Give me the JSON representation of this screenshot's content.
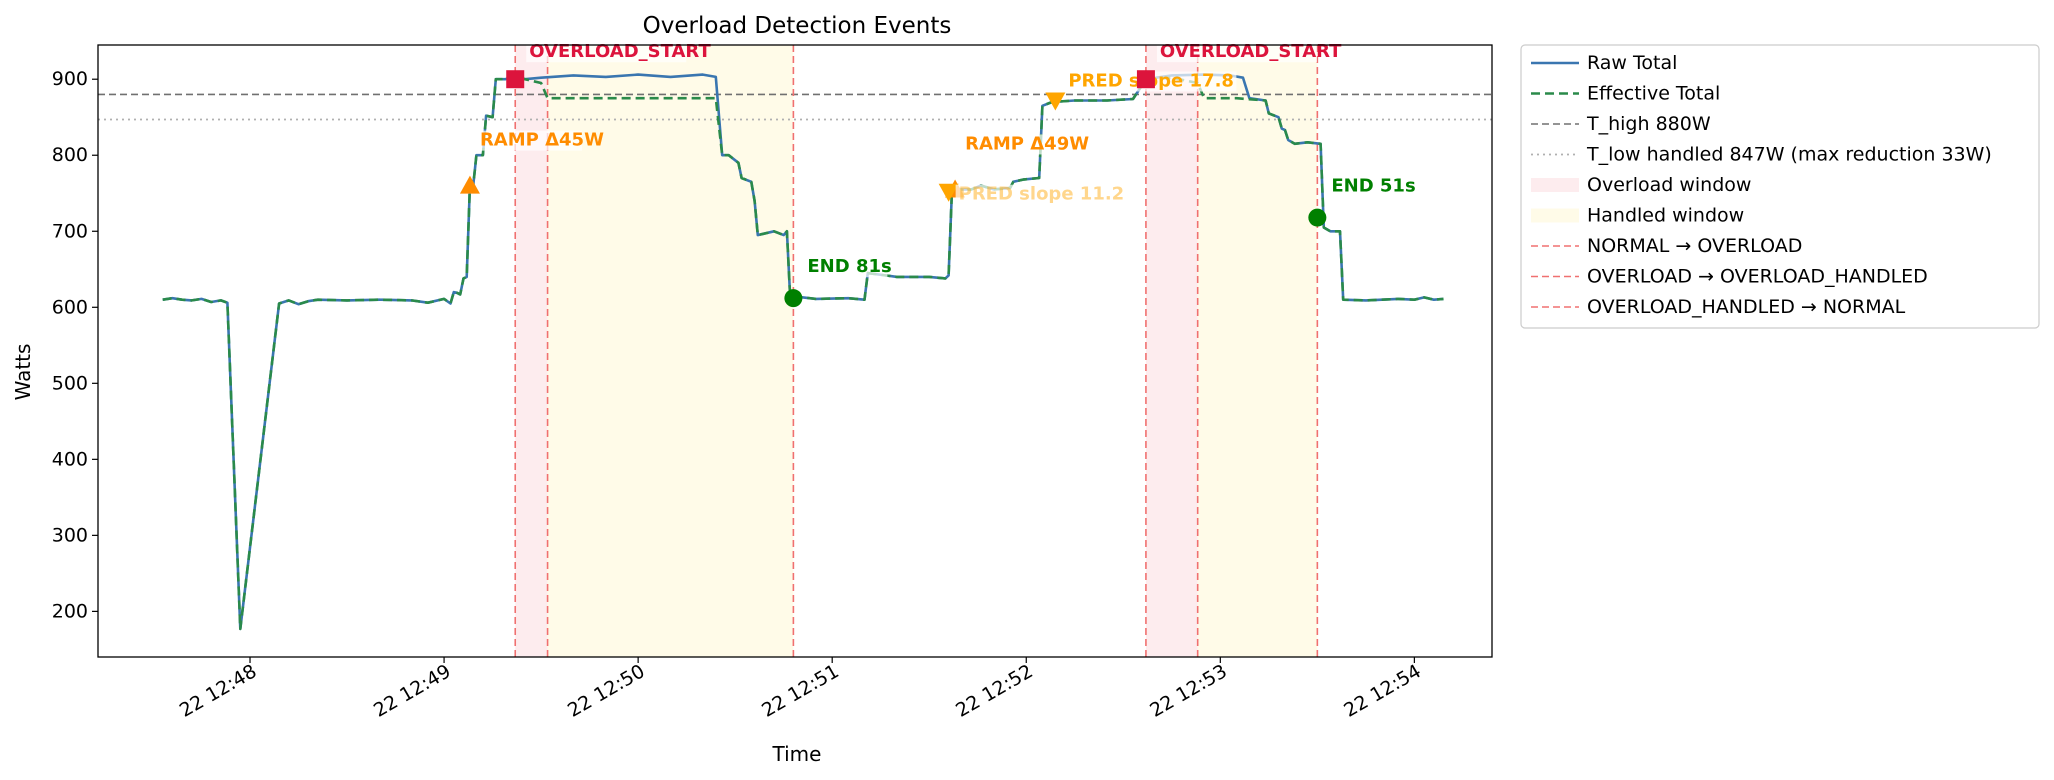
{
  "chart_data": {
    "type": "line",
    "title": "Overload Detection Events",
    "xlabel": "Time",
    "ylabel": "Watts",
    "xlim": [
      "22 12:47:13",
      "22 12:54:24"
    ],
    "ylim": [
      140,
      945
    ],
    "grid": false,
    "legend_position": "outside-right",
    "x_ticks": [
      {
        "t": "22 12:48:00",
        "label": "22 12:48"
      },
      {
        "t": "22 12:49:00",
        "label": "22 12:49"
      },
      {
        "t": "22 12:50:00",
        "label": "22 12:50"
      },
      {
        "t": "22 12:51:00",
        "label": "22 12:51"
      },
      {
        "t": "22 12:52:00",
        "label": "22 12:52"
      },
      {
        "t": "22 12:53:00",
        "label": "22 12:53"
      },
      {
        "t": "22 12:54:00",
        "label": "22 12:54"
      }
    ],
    "y_ticks": [
      200,
      300,
      400,
      500,
      600,
      700,
      800,
      900
    ],
    "colors": {
      "raw": "#3a76b0",
      "effective": "#2a8a4a",
      "t_high": "#707070",
      "t_low": "#b0b0b0",
      "transition": "#f07070",
      "overload_window": "#fdecee",
      "handled_window": "#fffbe8",
      "overload_marker": "#dc143c",
      "ramp": "#ff8c00",
      "pred": "#ffa500",
      "end": "#008000"
    },
    "thresholds": {
      "t_high": 880,
      "t_low": 847
    },
    "series": [
      {
        "name": "Raw Total",
        "points": [
          [
            "22 12:47:33",
            610
          ],
          [
            "22 12:47:36",
            612
          ],
          [
            "22 12:47:39",
            610
          ],
          [
            "22 12:47:42",
            609
          ],
          [
            "22 12:47:45",
            611
          ],
          [
            "22 12:47:48",
            607
          ],
          [
            "22 12:47:51",
            609
          ],
          [
            "22 12:47:53",
            606
          ],
          [
            "22 12:47:57",
            177
          ],
          [
            "22 12:48:09",
            605
          ],
          [
            "22 12:48:12",
            609
          ],
          [
            "22 12:48:15",
            604
          ],
          [
            "22 12:48:18",
            608
          ],
          [
            "22 12:48:21",
            610
          ],
          [
            "22 12:48:30",
            609
          ],
          [
            "22 12:48:40",
            610
          ],
          [
            "22 12:48:50",
            609
          ],
          [
            "22 12:48:55",
            606
          ],
          [
            "22 12:49:00",
            611
          ],
          [
            "22 12:49:02",
            605
          ],
          [
            "22 12:49:03",
            620
          ],
          [
            "22 12:49:04",
            619
          ],
          [
            "22 12:49:05",
            617
          ],
          [
            "22 12:49:06",
            638
          ],
          [
            "22 12:49:07",
            640
          ],
          [
            "22 12:49:08",
            760
          ],
          [
            "22 12:49:09",
            760
          ],
          [
            "22 12:49:10",
            800
          ],
          [
            "22 12:49:12",
            800
          ],
          [
            "22 12:49:13",
            852
          ],
          [
            "22 12:49:15",
            850
          ],
          [
            "22 12:49:16",
            900
          ],
          [
            "22 12:49:19",
            900
          ],
          [
            "22 12:49:22",
            905
          ],
          [
            "22 12:49:25",
            900
          ],
          [
            "22 12:49:30",
            902
          ],
          [
            "22 12:49:40",
            905
          ],
          [
            "22 12:49:50",
            903
          ],
          [
            "22 12:50:00",
            906
          ],
          [
            "22 12:50:10",
            903
          ],
          [
            "22 12:50:20",
            906
          ],
          [
            "22 12:50:24",
            903
          ],
          [
            "22 12:50:26",
            800
          ],
          [
            "22 12:50:28",
            800
          ],
          [
            "22 12:50:31",
            790
          ],
          [
            "22 12:50:32",
            770
          ],
          [
            "22 12:50:35",
            765
          ],
          [
            "22 12:50:36",
            740
          ],
          [
            "22 12:50:37",
            695
          ],
          [
            "22 12:50:42",
            700
          ],
          [
            "22 12:50:45",
            695
          ],
          [
            "22 12:50:46",
            700
          ],
          [
            "22 12:50:47",
            615
          ],
          [
            "22 12:50:55",
            611
          ],
          [
            "22 12:51:05",
            612
          ],
          [
            "22 12:51:10",
            610
          ],
          [
            "22 12:51:11",
            645
          ],
          [
            "22 12:51:20",
            640
          ],
          [
            "22 12:51:30",
            640
          ],
          [
            "22 12:51:35",
            638
          ],
          [
            "22 12:51:36",
            642
          ],
          [
            "22 12:51:37",
            752
          ],
          [
            "22 12:51:40",
            755
          ],
          [
            "22 12:51:43",
            755
          ],
          [
            "22 12:51:46",
            760
          ],
          [
            "22 12:51:50",
            755
          ],
          [
            "22 12:51:55",
            757
          ],
          [
            "22 12:51:56",
            765
          ],
          [
            "22 12:51:59",
            768
          ],
          [
            "22 12:52:04",
            770
          ],
          [
            "22 12:52:05",
            865
          ],
          [
            "22 12:52:08",
            870
          ],
          [
            "22 12:52:15",
            872
          ],
          [
            "22 12:52:25",
            872
          ],
          [
            "22 12:52:33",
            874
          ],
          [
            "22 12:52:37",
            900
          ],
          [
            "22 12:52:45",
            905
          ],
          [
            "22 12:52:55",
            906
          ],
          [
            "22 12:53:03",
            905
          ],
          [
            "22 12:53:07",
            902
          ],
          [
            "22 12:53:09",
            875
          ],
          [
            "22 12:53:14",
            872
          ],
          [
            "22 12:53:15",
            855
          ],
          [
            "22 12:53:18",
            850
          ],
          [
            "22 12:53:19",
            835
          ],
          [
            "22 12:53:20",
            833
          ],
          [
            "22 12:53:21",
            820
          ],
          [
            "22 12:53:23",
            815
          ],
          [
            "22 12:53:27",
            817
          ],
          [
            "22 12:53:31",
            815
          ],
          [
            "22 12:53:32",
            705
          ],
          [
            "22 12:53:34",
            700
          ],
          [
            "22 12:53:37",
            700
          ],
          [
            "22 12:53:38",
            610
          ],
          [
            "22 12:53:45",
            609
          ],
          [
            "22 12:53:55",
            611
          ],
          [
            "22 12:54:00",
            610
          ],
          [
            "22 12:54:03",
            613
          ],
          [
            "22 12:54:06",
            610
          ],
          [
            "22 12:54:09",
            611
          ]
        ]
      },
      {
        "name": "Effective Total",
        "points": [
          [
            "22 12:47:33",
            610
          ],
          [
            "22 12:47:36",
            612
          ],
          [
            "22 12:47:39",
            610
          ],
          [
            "22 12:47:42",
            609
          ],
          [
            "22 12:47:45",
            611
          ],
          [
            "22 12:47:48",
            607
          ],
          [
            "22 12:47:51",
            609
          ],
          [
            "22 12:47:53",
            606
          ],
          [
            "22 12:47:57",
            177
          ],
          [
            "22 12:48:09",
            605
          ],
          [
            "22 12:48:12",
            609
          ],
          [
            "22 12:48:15",
            604
          ],
          [
            "22 12:48:18",
            608
          ],
          [
            "22 12:48:21",
            610
          ],
          [
            "22 12:48:30",
            609
          ],
          [
            "22 12:48:40",
            610
          ],
          [
            "22 12:48:50",
            609
          ],
          [
            "22 12:48:55",
            606
          ],
          [
            "22 12:49:00",
            611
          ],
          [
            "22 12:49:02",
            605
          ],
          [
            "22 12:49:03",
            620
          ],
          [
            "22 12:49:04",
            619
          ],
          [
            "22 12:49:05",
            617
          ],
          [
            "22 12:49:06",
            638
          ],
          [
            "22 12:49:07",
            640
          ],
          [
            "22 12:49:08",
            760
          ],
          [
            "22 12:49:09",
            760
          ],
          [
            "22 12:49:10",
            800
          ],
          [
            "22 12:49:12",
            800
          ],
          [
            "22 12:49:13",
            852
          ],
          [
            "22 12:49:15",
            850
          ],
          [
            "22 12:49:16",
            900
          ],
          [
            "22 12:49:19",
            900
          ],
          [
            "22 12:49:22",
            905
          ],
          [
            "22 12:49:25",
            900
          ],
          [
            "22 12:49:30",
            895
          ],
          [
            "22 12:49:32",
            875
          ],
          [
            "22 12:50:00",
            875
          ],
          [
            "22 12:50:24",
            875
          ],
          [
            "22 12:50:26",
            800
          ],
          [
            "22 12:50:28",
            800
          ],
          [
            "22 12:50:31",
            790
          ],
          [
            "22 12:50:32",
            770
          ],
          [
            "22 12:50:35",
            765
          ],
          [
            "22 12:50:36",
            740
          ],
          [
            "22 12:50:37",
            695
          ],
          [
            "22 12:50:42",
            700
          ],
          [
            "22 12:50:45",
            695
          ],
          [
            "22 12:50:46",
            700
          ],
          [
            "22 12:50:47",
            615
          ],
          [
            "22 12:50:55",
            611
          ],
          [
            "22 12:51:05",
            612
          ],
          [
            "22 12:51:10",
            610
          ],
          [
            "22 12:51:11",
            645
          ],
          [
            "22 12:51:20",
            640
          ],
          [
            "22 12:51:30",
            640
          ],
          [
            "22 12:51:35",
            638
          ],
          [
            "22 12:51:36",
            642
          ],
          [
            "22 12:51:37",
            752
          ],
          [
            "22 12:51:40",
            755
          ],
          [
            "22 12:51:43",
            755
          ],
          [
            "22 12:51:46",
            760
          ],
          [
            "22 12:51:50",
            755
          ],
          [
            "22 12:51:55",
            757
          ],
          [
            "22 12:51:56",
            765
          ],
          [
            "22 12:51:59",
            768
          ],
          [
            "22 12:52:04",
            770
          ],
          [
            "22 12:52:05",
            865
          ],
          [
            "22 12:52:08",
            870
          ],
          [
            "22 12:52:15",
            872
          ],
          [
            "22 12:52:25",
            872
          ],
          [
            "22 12:52:33",
            874
          ],
          [
            "22 12:52:37",
            900
          ],
          [
            "22 12:52:45",
            902
          ],
          [
            "22 12:52:53",
            895
          ],
          [
            "22 12:52:55",
            875
          ],
          [
            "22 12:53:05",
            875
          ],
          [
            "22 12:53:14",
            872
          ],
          [
            "22 12:53:15",
            855
          ],
          [
            "22 12:53:18",
            850
          ],
          [
            "22 12:53:19",
            835
          ],
          [
            "22 12:53:20",
            833
          ],
          [
            "22 12:53:21",
            820
          ],
          [
            "22 12:53:23",
            815
          ],
          [
            "22 12:53:27",
            817
          ],
          [
            "22 12:53:31",
            815
          ],
          [
            "22 12:53:32",
            705
          ],
          [
            "22 12:53:34",
            700
          ],
          [
            "22 12:53:37",
            700
          ],
          [
            "22 12:53:38",
            610
          ],
          [
            "22 12:53:45",
            609
          ],
          [
            "22 12:53:55",
            611
          ],
          [
            "22 12:54:00",
            610
          ],
          [
            "22 12:54:03",
            613
          ],
          [
            "22 12:54:06",
            610
          ],
          [
            "22 12:54:09",
            611
          ]
        ]
      }
    ],
    "overload_windows": [
      {
        "start": "22 12:49:22",
        "end": "22 12:49:32"
      },
      {
        "start": "22 12:52:37",
        "end": "22 12:52:53"
      }
    ],
    "handled_windows": [
      {
        "start": "22 12:49:32",
        "end": "22 12:50:48"
      },
      {
        "start": "22 12:52:53",
        "end": "22 12:53:30"
      }
    ],
    "transitions": [
      {
        "kind": "NORMAL → OVERLOAD",
        "t": "22 12:49:22"
      },
      {
        "kind": "OVERLOAD → OVERLOAD_HANDLED",
        "t": "22 12:49:32"
      },
      {
        "kind": "OVERLOAD_HANDLED → NORMAL",
        "t": "22 12:50:48"
      },
      {
        "kind": "NORMAL → OVERLOAD",
        "t": "22 12:52:37"
      },
      {
        "kind": "OVERLOAD → OVERLOAD_HANDLED",
        "t": "22 12:52:53"
      },
      {
        "kind": "OVERLOAD_HANDLED → NORMAL",
        "t": "22 12:53:30"
      }
    ],
    "markers": [
      {
        "type": "ramp",
        "t": "22 12:49:08",
        "y": 760,
        "label": "RAMP Δ45W"
      },
      {
        "type": "ramp",
        "t": "22 12:51:38",
        "y": 755,
        "label": "RAMP Δ49W"
      },
      {
        "type": "pred",
        "t": "22 12:51:36",
        "y": 752,
        "label": "PRED slope 11.2"
      },
      {
        "type": "pred",
        "t": "22 12:52:09",
        "y": 872,
        "label": "PRED slope 17.8"
      },
      {
        "type": "overload_start",
        "t": "22 12:49:22",
        "y": 900,
        "label": "OVERLOAD_START"
      },
      {
        "type": "overload_start",
        "t": "22 12:52:37",
        "y": 900,
        "label": "OVERLOAD_START"
      },
      {
        "type": "end",
        "t": "22 12:50:48",
        "y": 612,
        "label": "END 81s"
      },
      {
        "type": "end",
        "t": "22 12:53:30",
        "y": 718,
        "label": "END 51s"
      }
    ],
    "legend": [
      {
        "label": "Raw Total",
        "kind": "raw"
      },
      {
        "label": "Effective Total",
        "kind": "effective"
      },
      {
        "label": "T_high 880W",
        "kind": "t_high"
      },
      {
        "label": "T_low handled 847W (max reduction 33W)",
        "kind": "t_low"
      },
      {
        "label": "Overload window",
        "kind": "overload_window"
      },
      {
        "label": "Handled window",
        "kind": "handled_window"
      },
      {
        "label": "NORMAL → OVERLOAD",
        "kind": "transition"
      },
      {
        "label": "OVERLOAD → OVERLOAD_HANDLED",
        "kind": "transition"
      },
      {
        "label": "OVERLOAD_HANDLED → NORMAL",
        "kind": "transition"
      }
    ]
  }
}
